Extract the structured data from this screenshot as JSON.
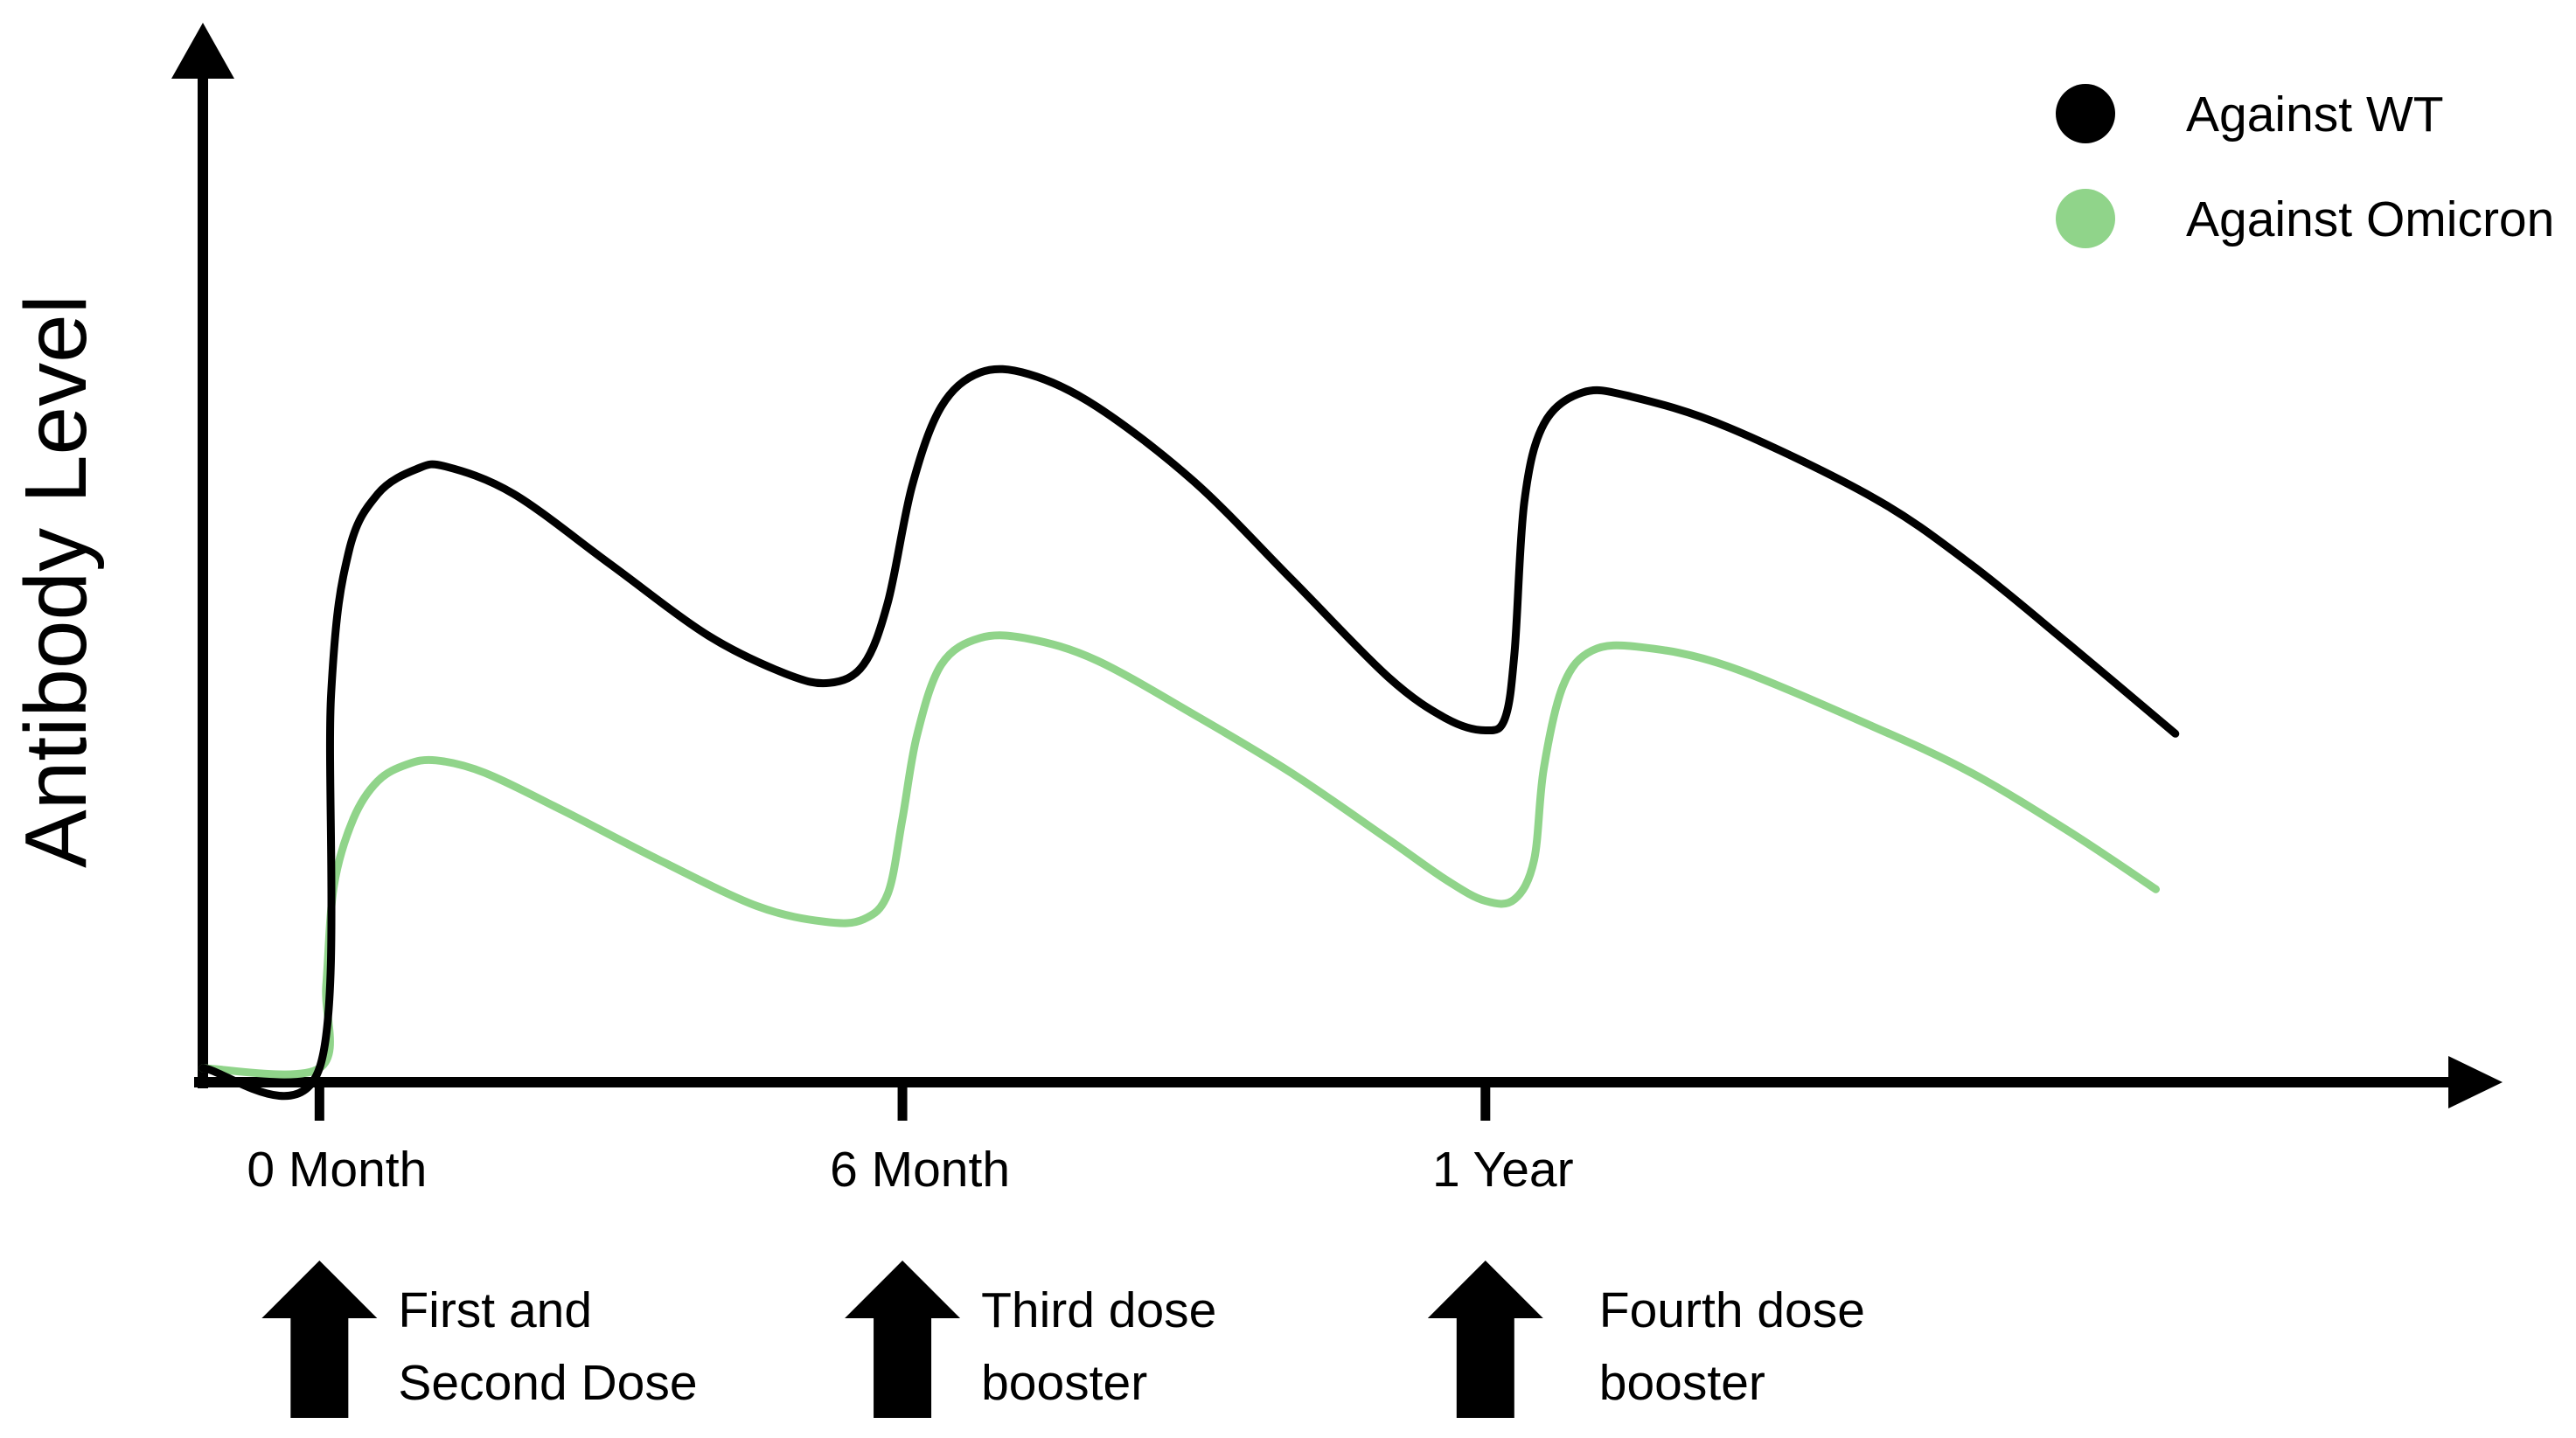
{
  "chart_data": {
    "type": "line",
    "title": "",
    "xlabel": "",
    "ylabel": "Antibody Level",
    "x_ticks": [
      "0 Month",
      "6 Month",
      "1 Year"
    ],
    "x_tick_months": [
      0,
      6,
      12
    ],
    "xlim": [
      -1.2,
      22
    ],
    "ylim": [
      0,
      100
    ],
    "legend_position": "top-right",
    "series": [
      {
        "name": "Against WT",
        "color": "#000000",
        "points": [
          [
            -1.2,
            0
          ],
          [
            0,
            0
          ],
          [
            0.12,
            45
          ],
          [
            0.3,
            62
          ],
          [
            0.6,
            69
          ],
          [
            1.0,
            72
          ],
          [
            1.3,
            72.3
          ],
          [
            2.0,
            69
          ],
          [
            3.0,
            60.5
          ],
          [
            4.0,
            52
          ],
          [
            4.8,
            47.4
          ],
          [
            5.25,
            46.3
          ],
          [
            5.6,
            48.5
          ],
          [
            5.85,
            56
          ],
          [
            6.1,
            70
          ],
          [
            6.4,
            79.5
          ],
          [
            6.8,
            83.6
          ],
          [
            7.3,
            83.4
          ],
          [
            8.0,
            79.5
          ],
          [
            9.0,
            70.5
          ],
          [
            10.0,
            58.8
          ],
          [
            11.0,
            47
          ],
          [
            11.6,
            42
          ],
          [
            12.0,
            40.6
          ],
          [
            12.2,
            42
          ],
          [
            12.3,
            50
          ],
          [
            12.4,
            68
          ],
          [
            12.6,
            77.4
          ],
          [
            13.0,
            81.2
          ],
          [
            13.5,
            80.7
          ],
          [
            14.5,
            77
          ],
          [
            16.0,
            68.5
          ],
          [
            17.0,
            60.5
          ],
          [
            18.0,
            51
          ],
          [
            19.1,
            40.2
          ]
        ]
      },
      {
        "name": "Against Omicron",
        "color": "#90D48A",
        "points": [
          [
            -1.2,
            0
          ],
          [
            0,
            0
          ],
          [
            0.07,
            10
          ],
          [
            0.15,
            22
          ],
          [
            0.35,
            30
          ],
          [
            0.6,
            34.5
          ],
          [
            0.9,
            36.5
          ],
          [
            1.2,
            37
          ],
          [
            1.7,
            35.5
          ],
          [
            2.5,
            31
          ],
          [
            3.5,
            25
          ],
          [
            4.5,
            19.5
          ],
          [
            5.2,
            17.6
          ],
          [
            5.6,
            17.9
          ],
          [
            5.85,
            21
          ],
          [
            6.0,
            30
          ],
          [
            6.15,
            40
          ],
          [
            6.4,
            48.5
          ],
          [
            6.8,
            51.7
          ],
          [
            7.3,
            51.6
          ],
          [
            8.0,
            49
          ],
          [
            9.0,
            42.5
          ],
          [
            10.0,
            35.5
          ],
          [
            11.0,
            27.5
          ],
          [
            11.6,
            22.6
          ],
          [
            12.0,
            20.1
          ],
          [
            12.3,
            20.3
          ],
          [
            12.5,
            25
          ],
          [
            12.6,
            36
          ],
          [
            12.8,
            46
          ],
          [
            13.1,
            50.2
          ],
          [
            13.6,
            50.6
          ],
          [
            14.5,
            48.3
          ],
          [
            16.0,
            41
          ],
          [
            17.0,
            35.5
          ],
          [
            18.0,
            28.5
          ],
          [
            18.9,
            21.5
          ]
        ]
      }
    ],
    "dose_markers": [
      {
        "month": 0,
        "label_lines": [
          "First and",
          "Second Dose"
        ]
      },
      {
        "month": 6,
        "label_lines": [
          "Third dose",
          "booster"
        ]
      },
      {
        "month": 12,
        "label_lines": [
          "Fourth dose",
          "booster"
        ]
      }
    ]
  }
}
